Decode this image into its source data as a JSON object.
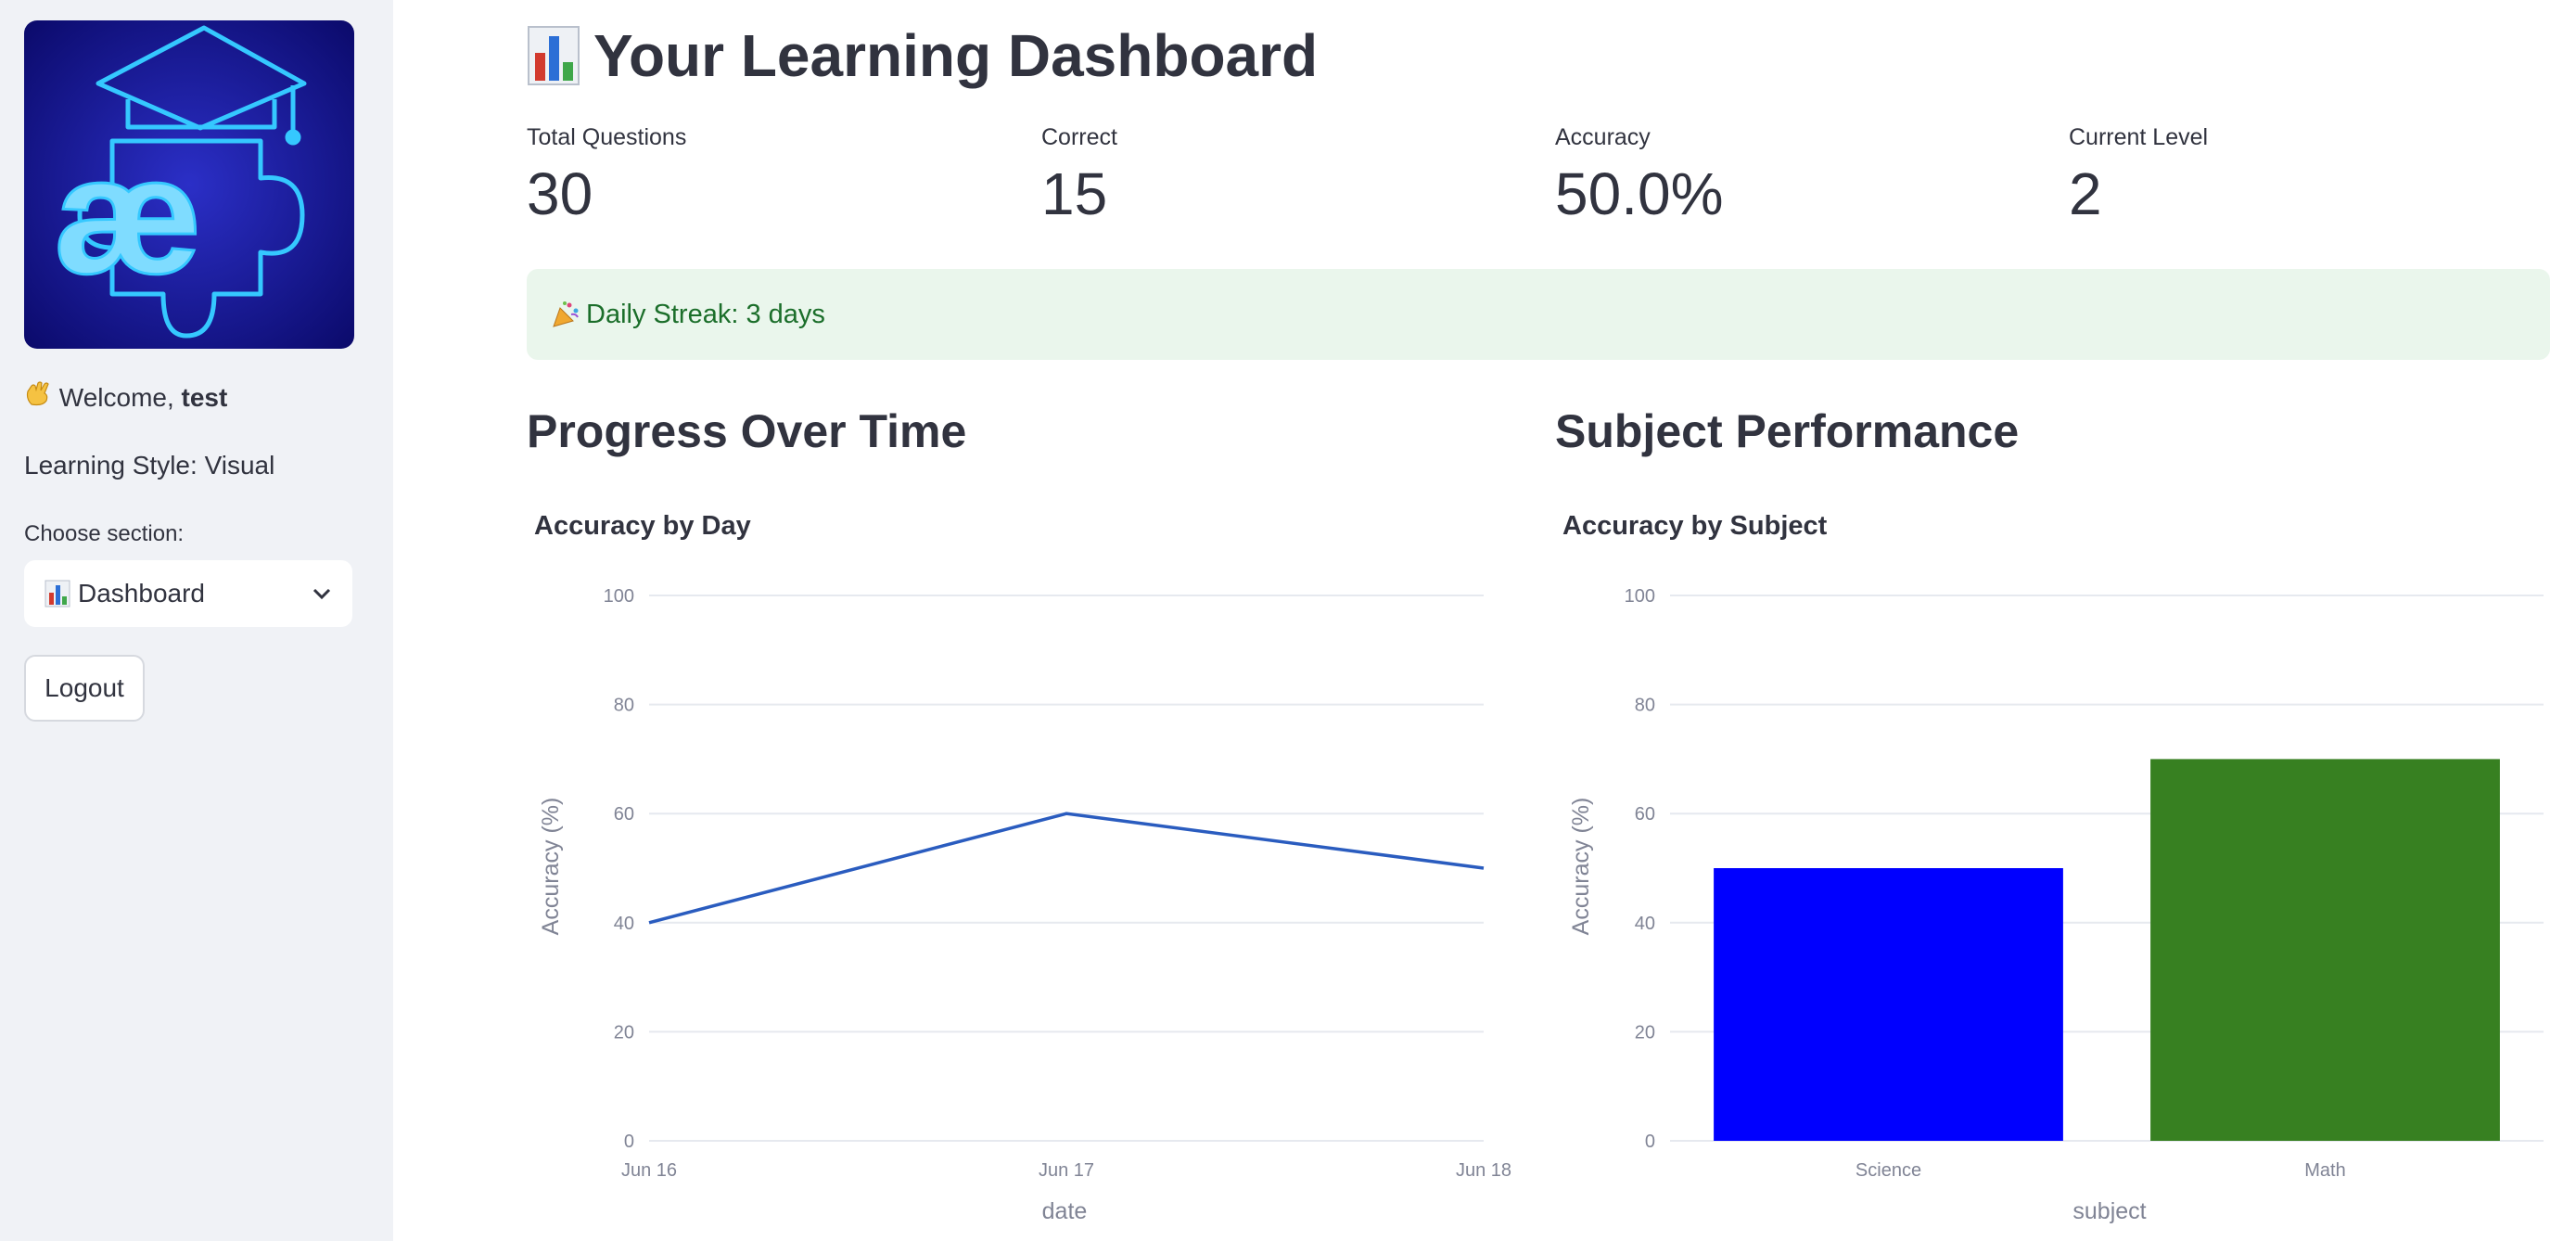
{
  "sidebar": {
    "logo_icon": "graduation-cap-puzzle-logo",
    "logo_text": "æ",
    "welcome_prefix": "Welcome, ",
    "username": "test",
    "wave_icon": "waving-hand-icon",
    "learning_style": "Learning Style: Visual",
    "choose_label": "Choose section:",
    "section_selected": "Dashboard",
    "section_icon": "bar-chart-icon",
    "logout_label": "Logout"
  },
  "main": {
    "title": "Your Learning Dashboard",
    "title_icon": "bar-chart-icon",
    "metrics": [
      {
        "label": "Total Questions",
        "value": "30"
      },
      {
        "label": "Correct",
        "value": "15"
      },
      {
        "label": "Accuracy",
        "value": "50.0%"
      },
      {
        "label": "Current Level",
        "value": "2"
      }
    ],
    "streak_text": "Daily Streak: 3 days",
    "streak_icon": "party-popper-icon",
    "left_header": "Progress Over Time",
    "right_header": "Subject Performance"
  },
  "colors": {
    "line": "#2a5cbf",
    "science_bar": "#0000ff",
    "math_bar": "#378021",
    "streak_bg": "#eaf6ec",
    "streak_text": "#1b6e2a"
  },
  "chart_data": [
    {
      "type": "line",
      "title": "Accuracy by Day",
      "xlabel": "date",
      "ylabel": "Accuracy (%)",
      "x": [
        "Jun 16",
        "Jun 17",
        "Jun 18"
      ],
      "series": [
        {
          "values": [
            40,
            60,
            50
          ]
        }
      ],
      "ylim": [
        0,
        100
      ],
      "yticks": [
        0,
        20,
        40,
        60,
        80,
        100
      ],
      "grid": true
    },
    {
      "type": "bar",
      "title": "Accuracy by Subject",
      "xlabel": "subject",
      "ylabel": "Accuracy (%)",
      "categories": [
        "Science",
        "Math"
      ],
      "values": [
        50,
        70
      ],
      "ylim": [
        0,
        100
      ],
      "yticks": [
        0,
        20,
        40,
        60,
        80,
        100
      ],
      "grid": true
    }
  ]
}
